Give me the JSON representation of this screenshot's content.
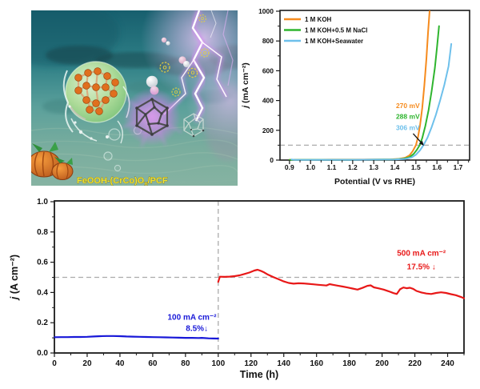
{
  "photo": {
    "label": {
      "prefix": "FeOOH-(CrCo)O",
      "sub": "x",
      "suffix": "/PCF"
    },
    "label_color": "#f2e32e",
    "bubble_symbol": "O"
  },
  "chart_data": [
    {
      "id": "lsv",
      "type": "line",
      "title": "",
      "xlabel": "Potential (V vs RHE)",
      "ylabel_italic": "j",
      "ylabel_rest": " (mA cm⁻²)",
      "xlim": [
        0.855,
        1.755
      ],
      "ylim": [
        0,
        1000
      ],
      "xticks": [
        0.9,
        1.0,
        1.1,
        1.2,
        1.3,
        1.4,
        1.5,
        1.6,
        1.7
      ],
      "xtick_labels": [
        "0.9",
        "1.0",
        "1.1",
        "1.2",
        "1.3",
        "1.4",
        "1.5",
        "1.6",
        "1.7"
      ],
      "yticks": [
        0,
        200,
        400,
        600,
        800,
        1000
      ],
      "ytick_labels": [
        "0",
        "200",
        "400",
        "600",
        "800",
        "1000"
      ],
      "x_minor_step": 0.05,
      "y_minor_step": 100,
      "grid": false,
      "legend_position": "top-left",
      "ref_lines": [
        {
          "axis": "y",
          "value": 100
        }
      ],
      "series": [
        {
          "name": "1 M KOH",
          "color": "#F68B1E",
          "points": [
            [
              0.9,
              2
            ],
            [
              1.0,
              2
            ],
            [
              1.1,
              3
            ],
            [
              1.2,
              3
            ],
            [
              1.3,
              4
            ],
            [
              1.38,
              5
            ],
            [
              1.42,
              8
            ],
            [
              1.45,
              16
            ],
            [
              1.47,
              32
            ],
            [
              1.485,
              60
            ],
            [
              1.5,
              100
            ],
            [
              1.51,
              155
            ],
            [
              1.52,
              235
            ],
            [
              1.53,
              350
            ],
            [
              1.54,
              500
            ],
            [
              1.55,
              680
            ],
            [
              1.558,
              860
            ],
            [
              1.565,
              1000
            ]
          ]
        },
        {
          "name": "1 M KOH+0.5 M NaCl",
          "color": "#2FB52F",
          "points": [
            [
              0.9,
              1
            ],
            [
              1.0,
              2
            ],
            [
              1.1,
              2
            ],
            [
              1.2,
              2
            ],
            [
              1.3,
              3
            ],
            [
              1.4,
              5
            ],
            [
              1.44,
              9
            ],
            [
              1.47,
              20
            ],
            [
              1.49,
              42
            ],
            [
              1.505,
              70
            ],
            [
              1.518,
              100
            ],
            [
              1.53,
              148
            ],
            [
              1.545,
              230
            ],
            [
              1.56,
              335
            ],
            [
              1.575,
              465
            ],
            [
              1.59,
              620
            ],
            [
              1.6,
              755
            ],
            [
              1.61,
              900
            ]
          ]
        },
        {
          "name": "1 M KOH+Seawater",
          "color": "#6EC0EB",
          "points": [
            [
              0.91,
              4
            ],
            [
              0.925,
              1
            ],
            [
              1.0,
              1
            ],
            [
              1.1,
              2
            ],
            [
              1.2,
              2
            ],
            [
              1.3,
              3
            ],
            [
              1.4,
              4
            ],
            [
              1.45,
              8
            ],
            [
              1.48,
              18
            ],
            [
              1.5,
              36
            ],
            [
              1.52,
              66
            ],
            [
              1.536,
              100
            ],
            [
              1.555,
              150
            ],
            [
              1.575,
              222
            ],
            [
              1.595,
              305
            ],
            [
              1.615,
              400
            ],
            [
              1.635,
              505
            ],
            [
              1.655,
              630
            ],
            [
              1.668,
              780
            ]
          ]
        }
      ],
      "annotations": [
        {
          "text": "270 mV",
          "color": "#F68B1E",
          "x": 1.462,
          "y": 365
        },
        {
          "text": "288 mV",
          "color": "#2FB52F",
          "x": 1.462,
          "y": 292
        },
        {
          "text": "306 mV",
          "color": "#6EC0EB",
          "x": 1.462,
          "y": 218
        }
      ],
      "arrow": {
        "from": [
          1.487,
          178
        ],
        "to": [
          1.538,
          97
        ],
        "color": "#111111"
      }
    },
    {
      "id": "stab",
      "type": "line",
      "title": "",
      "xlabel": "Time (h)",
      "ylabel_italic": "j",
      "ylabel_rest": " (A cm⁻²)",
      "xlim": [
        0,
        250
      ],
      "ylim": [
        0,
        1.0
      ],
      "xticks": [
        0,
        20,
        40,
        60,
        80,
        100,
        120,
        140,
        160,
        180,
        200,
        220,
        240
      ],
      "xtick_labels": [
        "0",
        "20",
        "40",
        "60",
        "80",
        "100",
        "120",
        "140",
        "160",
        "180",
        "200",
        "220",
        "240"
      ],
      "yticks": [
        0,
        0.2,
        0.4,
        0.6,
        0.8,
        1.0
      ],
      "ytick_labels": [
        "0.0",
        "0.2",
        "0.4",
        "0.6",
        "0.8",
        "1.0"
      ],
      "x_minor_step": 10,
      "y_minor_step": 0.1,
      "grid": false,
      "ref_lines": [
        {
          "axis": "y",
          "value": 0.5
        },
        {
          "axis": "x",
          "value": 100
        }
      ],
      "series": [
        {
          "name": "100 mA cm⁻²",
          "color": "#1818D8",
          "points": [
            [
              0,
              0.104
            ],
            [
              4,
              0.105
            ],
            [
              8,
              0.105
            ],
            [
              12,
              0.106
            ],
            [
              16,
              0.106
            ],
            [
              20,
              0.107
            ],
            [
              24,
              0.109
            ],
            [
              28,
              0.111
            ],
            [
              32,
              0.112
            ],
            [
              36,
              0.112
            ],
            [
              40,
              0.111
            ],
            [
              44,
              0.109
            ],
            [
              48,
              0.108
            ],
            [
              52,
              0.107
            ],
            [
              56,
              0.106
            ],
            [
              60,
              0.105
            ],
            [
              64,
              0.104
            ],
            [
              68,
              0.103
            ],
            [
              72,
              0.102
            ],
            [
              76,
              0.101
            ],
            [
              80,
              0.1
            ],
            [
              84,
              0.1
            ],
            [
              88,
              0.099
            ],
            [
              90,
              0.1
            ],
            [
              94,
              0.097
            ],
            [
              97,
              0.096
            ],
            [
              100,
              0.095
            ]
          ]
        },
        {
          "name": "500 mA cm⁻²",
          "color": "#E81818",
          "points": [
            [
              100,
              0.47
            ],
            [
              101,
              0.504
            ],
            [
              104,
              0.503
            ],
            [
              107,
              0.505
            ],
            [
              110,
              0.508
            ],
            [
              113,
              0.513
            ],
            [
              116,
              0.522
            ],
            [
              119,
              0.532
            ],
            [
              122,
              0.545
            ],
            [
              124,
              0.55
            ],
            [
              126,
              0.543
            ],
            [
              128,
              0.533
            ],
            [
              130,
              0.52
            ],
            [
              132,
              0.51
            ],
            [
              134,
              0.5
            ],
            [
              137,
              0.487
            ],
            [
              140,
              0.473
            ],
            [
              143,
              0.463
            ],
            [
              146,
              0.458
            ],
            [
              149,
              0.461
            ],
            [
              152,
              0.46
            ],
            [
              155,
              0.457
            ],
            [
              158,
              0.454
            ],
            [
              161,
              0.451
            ],
            [
              164,
              0.448
            ],
            [
              166,
              0.446
            ],
            [
              168,
              0.455
            ],
            [
              170,
              0.451
            ],
            [
              173,
              0.445
            ],
            [
              176,
              0.439
            ],
            [
              179,
              0.433
            ],
            [
              182,
              0.426
            ],
            [
              185,
              0.419
            ],
            [
              188,
              0.43
            ],
            [
              191,
              0.444
            ],
            [
              193,
              0.447
            ],
            [
              195,
              0.434
            ],
            [
              198,
              0.427
            ],
            [
              201,
              0.419
            ],
            [
              204,
              0.408
            ],
            [
              207,
              0.396
            ],
            [
              209,
              0.39
            ],
            [
              211,
              0.421
            ],
            [
              213,
              0.433
            ],
            [
              215,
              0.428
            ],
            [
              217,
              0.431
            ],
            [
              219,
              0.424
            ],
            [
              221,
              0.41
            ],
            [
              224,
              0.4
            ],
            [
              227,
              0.393
            ],
            [
              230,
              0.39
            ],
            [
              233,
              0.397
            ],
            [
              236,
              0.401
            ],
            [
              239,
              0.397
            ],
            [
              242,
              0.389
            ],
            [
              245,
              0.382
            ],
            [
              248,
              0.371
            ],
            [
              250,
              0.362
            ]
          ]
        }
      ],
      "annotations": [
        {
          "text": "100 mA cm⁻²",
          "color": "#1818D8",
          "x": 84,
          "y": 0.235
        },
        {
          "text": "8.5%↓",
          "color": "#1818D8",
          "x": 87,
          "y": 0.162
        },
        {
          "text": "500 mA cm⁻²",
          "color": "#E81818",
          "x": 224,
          "y": 0.66
        },
        {
          "text": "17.5% ↓",
          "color": "#E81818",
          "x": 224,
          "y": 0.57
        }
      ]
    }
  ]
}
